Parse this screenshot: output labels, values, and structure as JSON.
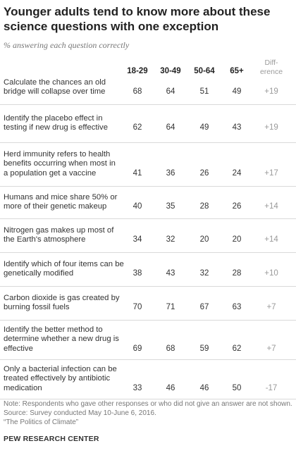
{
  "chart_data": {
    "type": "table",
    "title": "Younger adults tend to know more about these science questions with one exception",
    "subtitle": "% answering each question correctly",
    "columns": [
      "18-29",
      "30-49",
      "50-64",
      "65+"
    ],
    "diff_header": [
      "Diff-",
      "erence"
    ],
    "rows": [
      {
        "lines": [
          "Calculate the chances an old",
          "bridge will collapse over time"
        ],
        "values": [
          68,
          64,
          51,
          49
        ],
        "diff": "+19"
      },
      {
        "lines": [
          "Identify the placebo effect in",
          "testing if new drug is effective"
        ],
        "values": [
          62,
          64,
          49,
          43
        ],
        "diff": "+19"
      },
      {
        "lines": [
          "Herd immunity refers to health",
          "benefits occurring when most in",
          "a population get a vaccine"
        ],
        "values": [
          41,
          36,
          26,
          24
        ],
        "diff": "+17"
      },
      {
        "lines": [
          "Humans and mice share 50% or",
          "more of their genetic makeup"
        ],
        "values": [
          40,
          35,
          28,
          26
        ],
        "diff": "+14"
      },
      {
        "lines": [
          "Nitrogen gas makes up most of",
          "the Earth's atmosphere"
        ],
        "values": [
          34,
          32,
          20,
          20
        ],
        "diff": "+14"
      },
      {
        "lines": [
          "Identify which of four items can be",
          "genetically modified"
        ],
        "values": [
          38,
          43,
          32,
          28
        ],
        "diff": "+10"
      },
      {
        "lines": [
          "Carbon dioxide is gas created by",
          "burning fossil fuels"
        ],
        "values": [
          70,
          71,
          67,
          63
        ],
        "diff": "+7"
      },
      {
        "lines": [
          "Identify the better method to",
          "determine whether a new drug is",
          "effective"
        ],
        "values": [
          69,
          68,
          59,
          62
        ],
        "diff": "+7"
      },
      {
        "lines": [
          "Only a bacterial infection can be",
          "treated effectively by antibiotic",
          "medication"
        ],
        "values": [
          33,
          46,
          46,
          50
        ],
        "diff": "-17"
      }
    ]
  },
  "notes": [
    "Note: Respondents who gave other responses or who did not give an answer are not shown.",
    "Source: Survey conducted May 10-June 6, 2016.",
    "“The Politics of Climate”"
  ],
  "brand": "PEW RESEARCH CENTER"
}
